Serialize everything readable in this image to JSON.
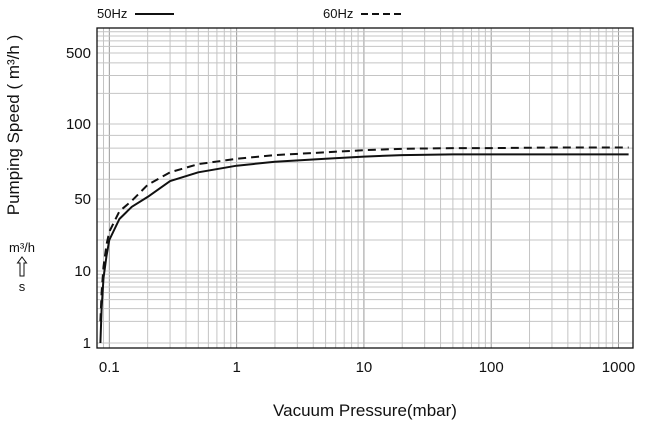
{
  "chart_data": {
    "type": "line",
    "xlabel": "Vacuum Pressure(mbar)",
    "ylabel": "Pumping Speed ( m³/h )",
    "x_scale": "log",
    "xlim": [
      0.08,
      1300
    ],
    "x_ticks": [
      0.1,
      1,
      10,
      100,
      1000
    ],
    "x_tick_labels": [
      "0.1",
      "1",
      "10",
      "100",
      "1000"
    ],
    "y_ticks": [
      1,
      10,
      50,
      100,
      500
    ],
    "y_tick_labels": [
      "1",
      "10",
      "50",
      "100",
      "500"
    ],
    "grid": true,
    "legend_position": "top",
    "unit_annotation": {
      "top": "m³/h",
      "bottom": "s"
    },
    "series": [
      {
        "name": "50Hz",
        "style": "solid",
        "color": "#111111",
        "points": [
          [
            0.085,
            1
          ],
          [
            0.087,
            3
          ],
          [
            0.09,
            8
          ],
          [
            0.095,
            14
          ],
          [
            0.1,
            20
          ],
          [
            0.12,
            32
          ],
          [
            0.15,
            42
          ],
          [
            0.2,
            51
          ],
          [
            0.3,
            59
          ],
          [
            0.5,
            64
          ],
          [
            1,
            68
          ],
          [
            2,
            70.5
          ],
          [
            5,
            72.5
          ],
          [
            10,
            74
          ],
          [
            20,
            75
          ],
          [
            50,
            75.5
          ],
          [
            100,
            75.5
          ],
          [
            300,
            75.5
          ],
          [
            1000,
            75.5
          ],
          [
            1200,
            75.5
          ]
        ]
      },
      {
        "name": "60Hz",
        "style": "dashed",
        "color": "#111111",
        "points": [
          [
            0.085,
            2
          ],
          [
            0.087,
            5
          ],
          [
            0.09,
            11
          ],
          [
            0.095,
            18
          ],
          [
            0.1,
            24
          ],
          [
            0.12,
            38
          ],
          [
            0.15,
            48
          ],
          [
            0.2,
            57
          ],
          [
            0.3,
            64
          ],
          [
            0.5,
            69
          ],
          [
            1,
            72.5
          ],
          [
            2,
            75
          ],
          [
            5,
            77
          ],
          [
            10,
            78.5
          ],
          [
            20,
            79.5
          ],
          [
            50,
            80
          ],
          [
            100,
            80
          ],
          [
            300,
            80.5
          ],
          [
            1000,
            80.5
          ],
          [
            1200,
            80.5
          ]
        ]
      }
    ]
  }
}
